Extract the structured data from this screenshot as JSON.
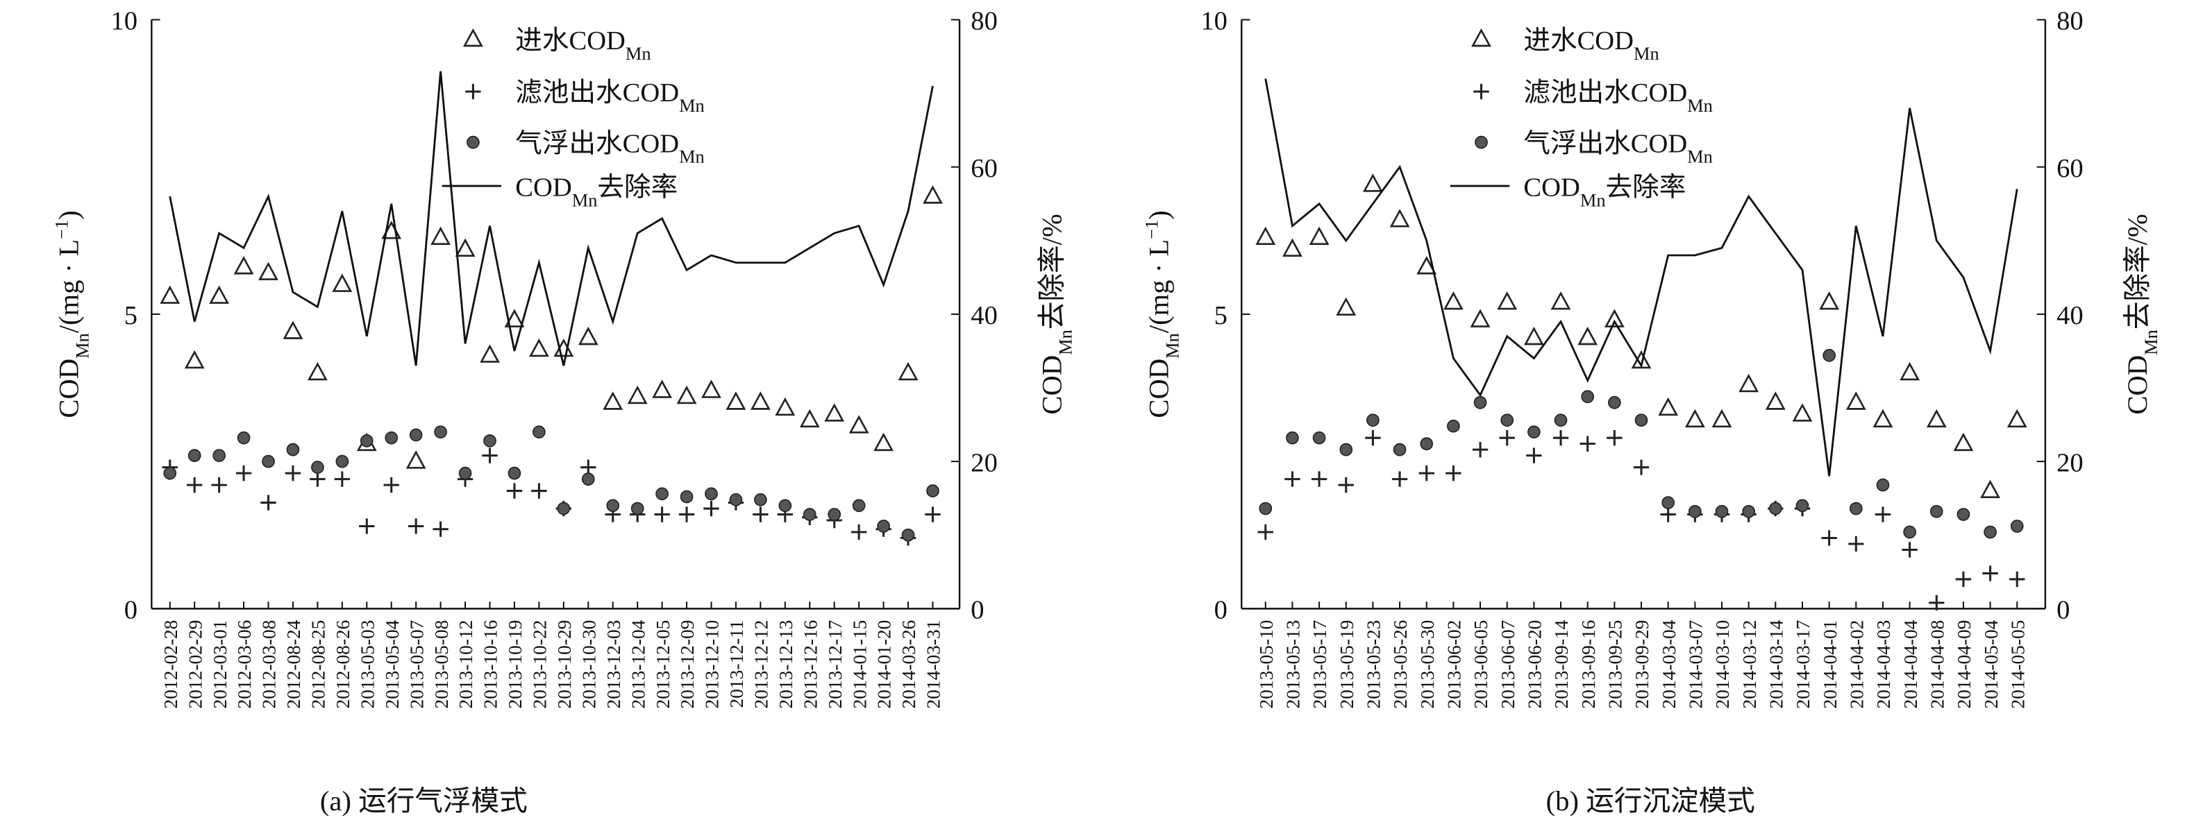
{
  "chart_data": [
    {
      "type": "combo",
      "caption": "(a) 运行气浮模式",
      "categories": [
        "2012-02-28",
        "2012-02-29",
        "2012-03-01",
        "2012-03-06",
        "2012-03-08",
        "2012-08-24",
        "2012-08-25",
        "2012-08-26",
        "2013-05-03",
        "2013-05-04",
        "2013-05-07",
        "2013-05-08",
        "2013-10-12",
        "2013-10-16",
        "2013-10-19",
        "2013-10-22",
        "2013-10-29",
        "2013-10-30",
        "2013-12-03",
        "2013-12-04",
        "2013-12-05",
        "2013-12-09",
        "2013-12-10",
        "2013-12-11",
        "2013-12-12",
        "2013-12-13",
        "2013-12-16",
        "2013-12-17",
        "2014-01-15",
        "2014-01-20",
        "2014-03-26",
        "2014-03-31"
      ],
      "ylabel": [
        {
          "text": "COD"
        },
        {
          "text": "Mn",
          "style": "sub"
        },
        {
          "text": "/(mg · L"
        },
        {
          "text": "−1",
          "style": "sup"
        },
        {
          "text": ")"
        }
      ],
      "y2label": [
        {
          "text": "COD"
        },
        {
          "text": "Mn",
          "style": "sub"
        },
        {
          "text": "去除率/%"
        }
      ],
      "ylim": [
        0,
        10
      ],
      "yticks": [
        0,
        5,
        10
      ],
      "y2lim": [
        0,
        80
      ],
      "y2ticks": [
        0,
        20,
        40,
        60,
        80
      ],
      "series": [
        {
          "name": "进水COD",
          "name_sub": "Mn",
          "marker": "triangle",
          "color": "#222",
          "values": [
            5.3,
            4.2,
            5.3,
            5.8,
            5.7,
            4.7,
            4.0,
            5.5,
            2.8,
            6.4,
            2.5,
            6.3,
            6.1,
            4.3,
            4.9,
            4.4,
            4.4,
            4.6,
            3.5,
            3.6,
            3.7,
            3.6,
            3.7,
            3.5,
            3.5,
            3.4,
            3.2,
            3.3,
            3.1,
            2.8,
            4.0,
            7.0
          ]
        },
        {
          "name": "滤池出水COD",
          "name_sub": "Mn",
          "marker": "plus",
          "color": "#222",
          "values": [
            2.4,
            2.1,
            2.1,
            2.3,
            1.8,
            2.3,
            2.2,
            2.2,
            1.4,
            2.1,
            1.4,
            1.35,
            2.2,
            2.6,
            2.0,
            2.0,
            1.7,
            2.4,
            1.6,
            1.6,
            1.6,
            1.6,
            1.7,
            1.8,
            1.6,
            1.6,
            1.55,
            1.5,
            1.3,
            1.35,
            1.2,
            1.6
          ]
        },
        {
          "name": "气浮出水COD",
          "name_sub": "Mn",
          "marker": "dot",
          "color": "#555",
          "values": [
            2.3,
            2.6,
            2.6,
            2.9,
            2.5,
            2.7,
            2.4,
            2.5,
            2.85,
            2.9,
            2.95,
            3.0,
            2.3,
            2.85,
            2.3,
            3.0,
            1.7,
            2.2,
            1.75,
            1.7,
            1.95,
            1.9,
            1.95,
            1.85,
            1.85,
            1.75,
            1.6,
            1.6,
            1.75,
            1.4,
            1.25,
            2.0
          ]
        },
        {
          "name": "去除率",
          "name_pre": "COD",
          "name_sub": "Mn",
          "marker": "line",
          "color": "#111",
          "axis": "y2",
          "values": [
            56,
            39,
            51,
            49,
            56,
            43,
            41,
            54,
            37,
            55,
            33,
            73,
            36,
            52,
            35,
            47,
            33,
            49,
            39,
            51,
            53,
            46,
            48,
            47,
            47,
            47,
            49,
            51,
            52,
            44,
            54,
            71
          ]
        }
      ]
    },
    {
      "type": "combo",
      "caption": "(b) 运行沉淀模式",
      "categories": [
        "2013-05-10",
        "2013-05-13",
        "2013-05-17",
        "2013-05-19",
        "2013-05-23",
        "2013-05-26",
        "2013-05-30",
        "2013-06-02",
        "2013-06-05",
        "2013-06-07",
        "2013-06-20",
        "2013-09-14",
        "2013-09-16",
        "2013-09-25",
        "2013-09-29",
        "2014-03-04",
        "2014-03-07",
        "2014-03-10",
        "2014-03-12",
        "2014-03-14",
        "2014-03-17",
        "2014-04-01",
        "2014-04-02",
        "2014-04-03",
        "2014-04-04",
        "2014-04-08",
        "2014-04-09",
        "2014-05-04",
        "2014-05-05"
      ],
      "ylabel": [
        {
          "text": "COD"
        },
        {
          "text": "Mn",
          "style": "sub"
        },
        {
          "text": "/(mg · L"
        },
        {
          "text": "−1",
          "style": "sup"
        },
        {
          "text": ")"
        }
      ],
      "y2label": [
        {
          "text": "COD"
        },
        {
          "text": "Mn",
          "style": "sub"
        },
        {
          "text": "去除率/%"
        }
      ],
      "ylim": [
        0,
        10
      ],
      "yticks": [
        0,
        5,
        10
      ],
      "y2lim": [
        0,
        80
      ],
      "y2ticks": [
        0,
        20,
        40,
        60,
        80
      ],
      "series": [
        {
          "name": "进水COD",
          "name_sub": "Mn",
          "marker": "triangle",
          "color": "#222",
          "values": [
            6.3,
            6.1,
            6.3,
            5.1,
            7.2,
            6.6,
            5.8,
            5.2,
            4.9,
            5.2,
            4.6,
            5.2,
            4.6,
            4.9,
            4.2,
            3.4,
            3.2,
            3.2,
            3.8,
            3.5,
            3.3,
            5.2,
            3.5,
            3.2,
            4.0,
            3.2,
            2.8,
            2.0,
            3.2
          ]
        },
        {
          "name": "滤池出水COD",
          "name_sub": "Mn",
          "marker": "plus",
          "color": "#222",
          "values": [
            1.3,
            2.2,
            2.2,
            2.1,
            2.9,
            2.2,
            2.3,
            2.3,
            2.7,
            2.9,
            2.6,
            2.9,
            2.8,
            2.9,
            2.4,
            1.6,
            1.6,
            1.6,
            1.6,
            1.7,
            1.7,
            1.2,
            1.1,
            1.6,
            1.0,
            0.1,
            0.5,
            0.6,
            0.5
          ]
        },
        {
          "name": "气浮出水COD",
          "name_sub": "Mn",
          "marker": "dot",
          "color": "#555",
          "values": [
            1.7,
            2.9,
            2.9,
            2.7,
            3.2,
            2.7,
            2.8,
            3.1,
            3.5,
            3.2,
            3.0,
            3.2,
            3.6,
            3.5,
            3.2,
            1.8,
            1.65,
            1.65,
            1.65,
            1.7,
            1.75,
            4.3,
            1.7,
            2.1,
            1.3,
            1.65,
            1.6,
            1.3,
            1.4
          ]
        },
        {
          "name": "去除率",
          "name_pre": "COD",
          "name_sub": "Mn",
          "marker": "line",
          "color": "#111",
          "axis": "y2",
          "values": [
            72,
            52,
            55,
            50,
            55,
            60,
            50,
            34,
            29,
            37,
            34,
            39,
            31,
            39,
            33,
            48,
            48,
            49,
            56,
            51,
            46,
            18,
            52,
            37,
            68,
            50,
            45,
            35,
            57
          ]
        }
      ]
    }
  ]
}
